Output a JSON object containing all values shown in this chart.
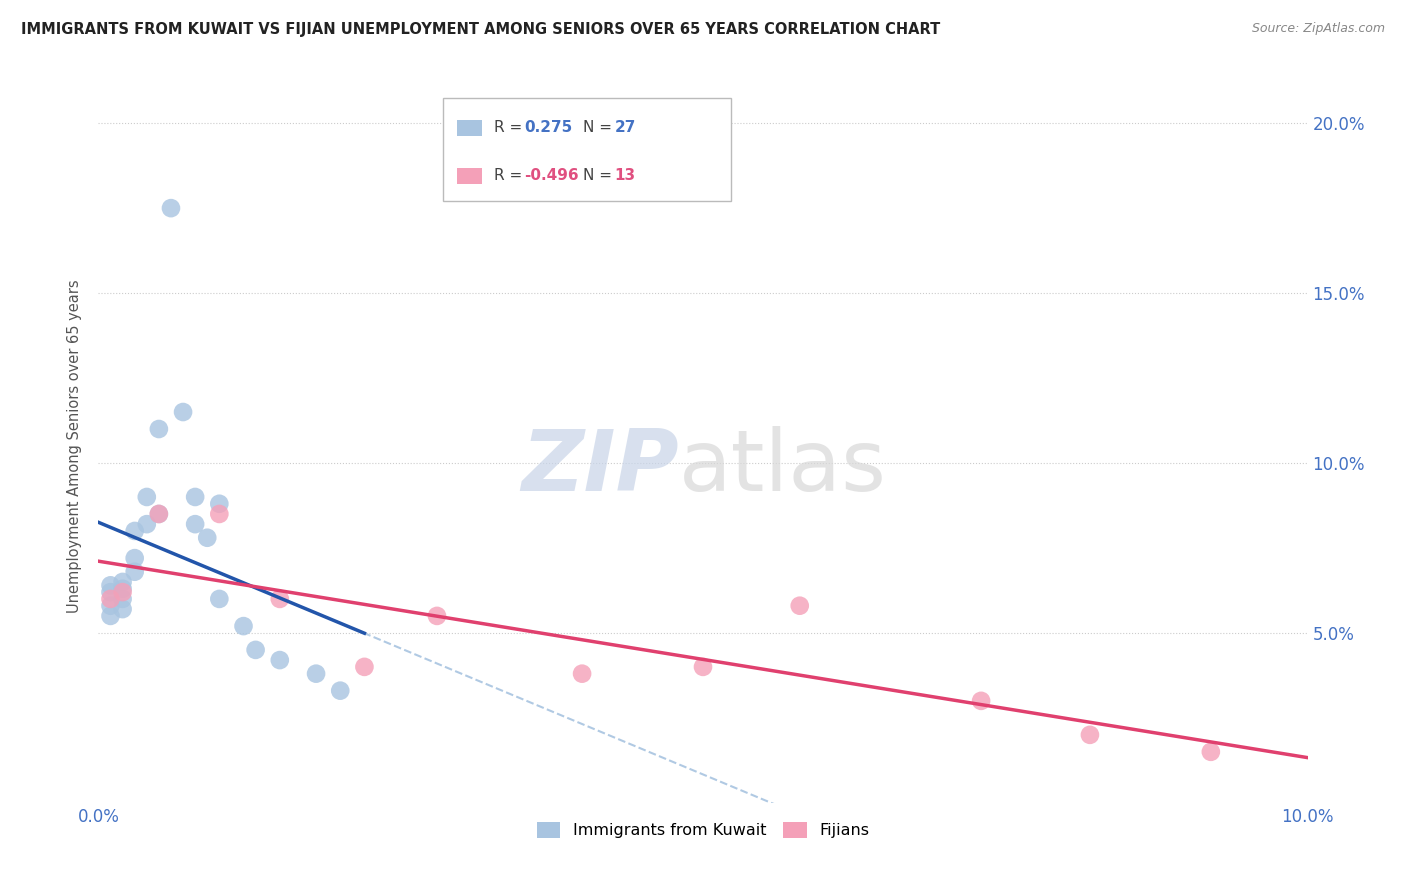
{
  "title": "IMMIGRANTS FROM KUWAIT VS FIJIAN UNEMPLOYMENT AMONG SENIORS OVER 65 YEARS CORRELATION CHART",
  "source": "Source: ZipAtlas.com",
  "ylabel": "Unemployment Among Seniors over 65 years",
  "xlim": [
    0.0,
    0.1
  ],
  "ylim": [
    0.0,
    0.21
  ],
  "blue_color": "#a8c4e0",
  "blue_line_color": "#2255aa",
  "pink_color": "#f4a0b8",
  "pink_line_color": "#e0406e",
  "dashed_line_color": "#a8c4e0",
  "watermark_zip": "ZIP",
  "watermark_atlas": "atlas",
  "legend_R1": " 0.275",
  "legend_N1": "27",
  "legend_R2": "-0.496",
  "legend_N2": "13",
  "blue_x": [
    0.001,
    0.001,
    0.001,
    0.001,
    0.002,
    0.002,
    0.002,
    0.002,
    0.003,
    0.003,
    0.003,
    0.004,
    0.004,
    0.005,
    0.005,
    0.006,
    0.007,
    0.008,
    0.008,
    0.009,
    0.01,
    0.01,
    0.012,
    0.013,
    0.015,
    0.018,
    0.02
  ],
  "blue_y": [
    0.055,
    0.062,
    0.058,
    0.064,
    0.063,
    0.065,
    0.06,
    0.057,
    0.072,
    0.068,
    0.08,
    0.082,
    0.09,
    0.11,
    0.085,
    0.175,
    0.115,
    0.09,
    0.082,
    0.078,
    0.088,
    0.06,
    0.052,
    0.045,
    0.042,
    0.038,
    0.033
  ],
  "pink_x": [
    0.001,
    0.002,
    0.005,
    0.01,
    0.015,
    0.022,
    0.028,
    0.04,
    0.05,
    0.058,
    0.073,
    0.082,
    0.092
  ],
  "pink_y": [
    0.06,
    0.062,
    0.085,
    0.085,
    0.06,
    0.04,
    0.055,
    0.038,
    0.04,
    0.058,
    0.03,
    0.02,
    0.015
  ]
}
